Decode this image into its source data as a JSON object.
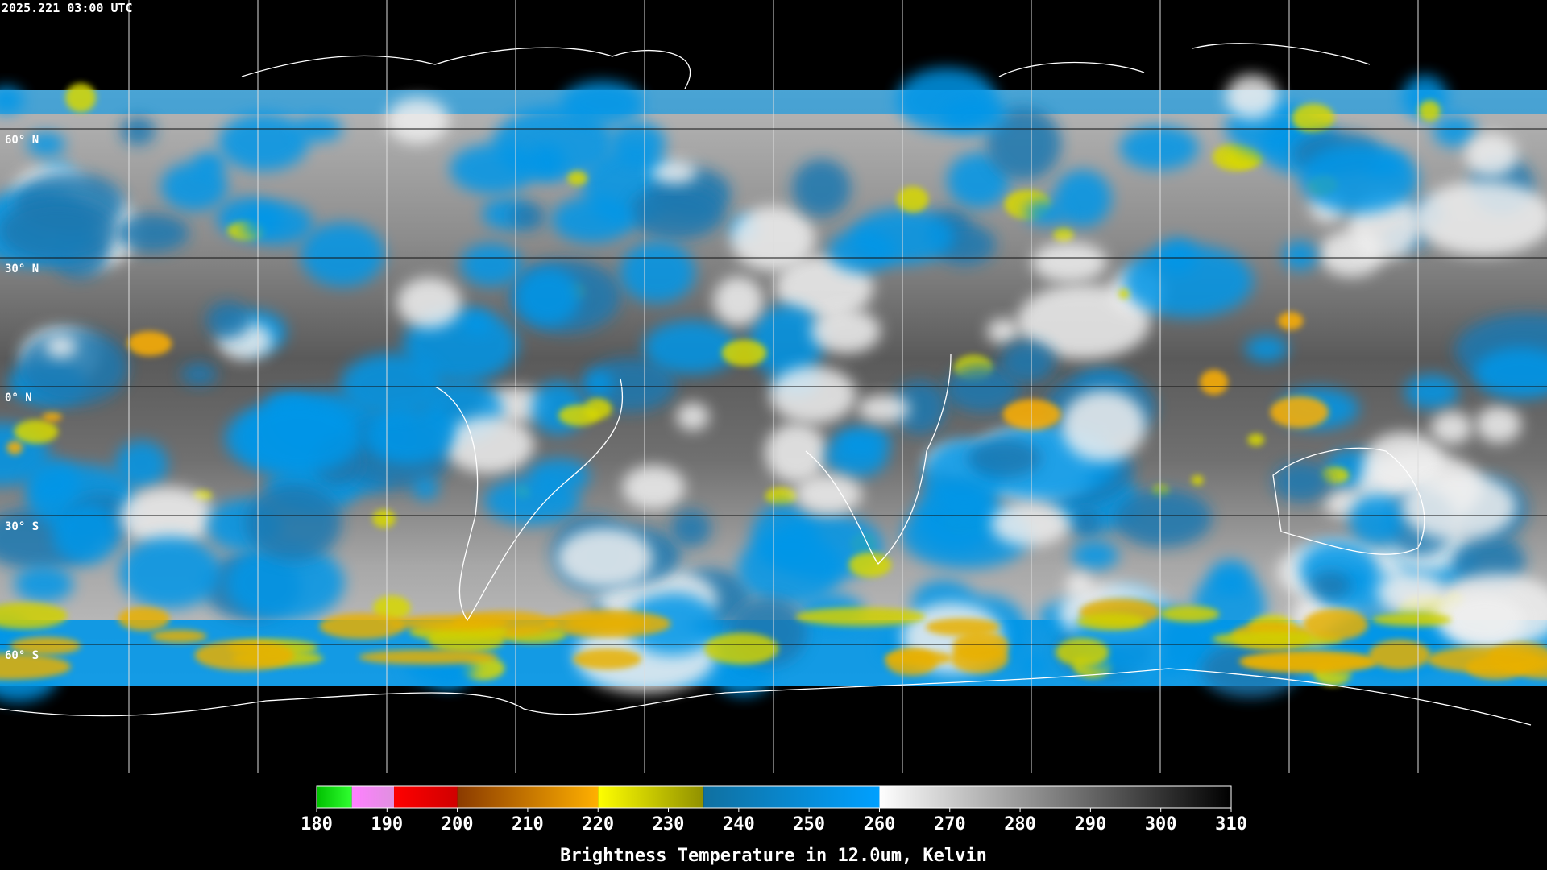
{
  "timestamp": "2025.221 03:00 UTC",
  "map": {
    "lat_lines": [
      {
        "value": 60,
        "label": "60° N"
      },
      {
        "value": 30,
        "label": "30° N"
      },
      {
        "value": 0,
        "label": "0° N"
      },
      {
        "value": -30,
        "label": "30° S"
      },
      {
        "value": -60,
        "label": "60° S"
      }
    ]
  },
  "colorbar": {
    "range": [
      180,
      310
    ],
    "ticks": [
      180,
      190,
      200,
      210,
      220,
      230,
      240,
      250,
      260,
      270,
      280,
      290,
      300,
      310
    ],
    "segments": [
      {
        "from": 180,
        "to": 185,
        "colors": [
          "#00c000",
          "#30ff30"
        ]
      },
      {
        "from": 185,
        "to": 191,
        "colors": [
          "#ff80ff",
          "#e090e0"
        ]
      },
      {
        "from": 191,
        "to": 200,
        "colors": [
          "#ff0000",
          "#d00000"
        ]
      },
      {
        "from": 200,
        "to": 220,
        "colors": [
          "#8a3a00",
          "#ffb000"
        ]
      },
      {
        "from": 220,
        "to": 235,
        "colors": [
          "#ffff00",
          "#909000"
        ]
      },
      {
        "from": 235,
        "to": 260,
        "colors": [
          "#1070a0",
          "#00a0ff"
        ]
      },
      {
        "from": 260,
        "to": 310,
        "colors": [
          "#ffffff",
          "#000000"
        ]
      }
    ],
    "title": "Brightness Temperature in 12.0um, Kelvin"
  }
}
